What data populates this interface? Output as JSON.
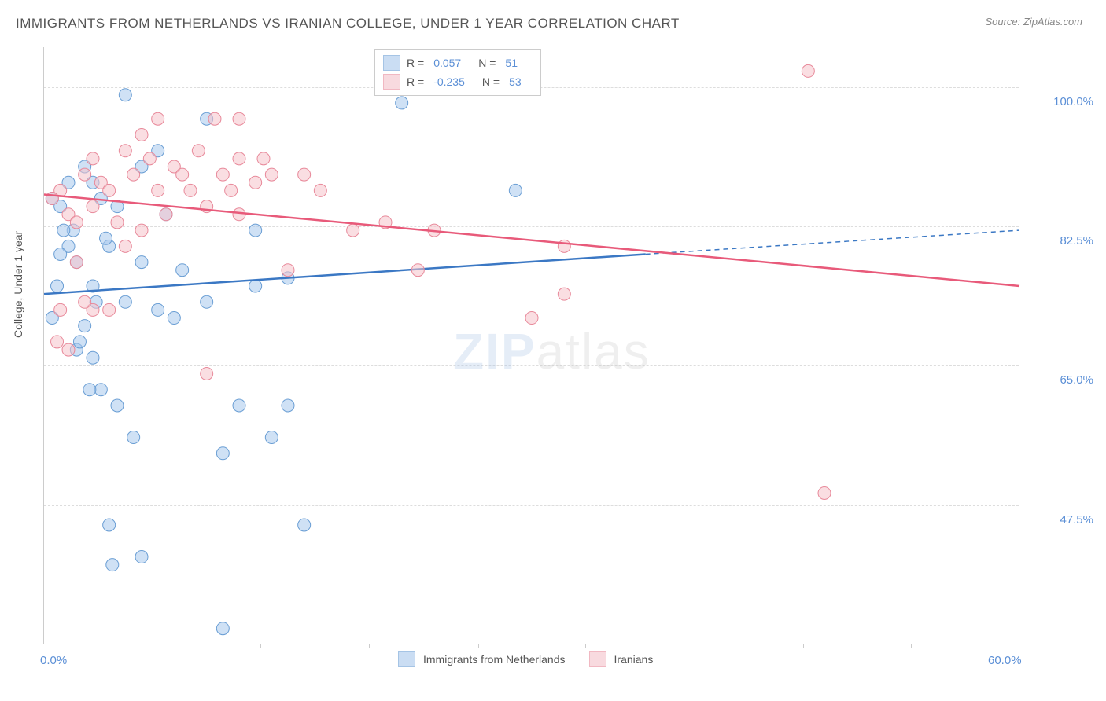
{
  "title": "IMMIGRANTS FROM NETHERLANDS VS IRANIAN COLLEGE, UNDER 1 YEAR CORRELATION CHART",
  "source": "Source: ZipAtlas.com",
  "ylabel": "College, Under 1 year",
  "watermark_bold": "ZIP",
  "watermark_light": "atlas",
  "chart": {
    "type": "scatter-with-regression",
    "xlim": [
      0,
      60
    ],
    "ylim": [
      30,
      105
    ],
    "x_ticks": [
      0,
      60
    ],
    "x_tick_labels": [
      "0.0%",
      "60.0%"
    ],
    "x_minor_ticks": [
      6.7,
      13.3,
      20,
      26.7,
      33.3,
      40,
      46.7,
      53.3
    ],
    "y_ticks": [
      47.5,
      65.0,
      82.5,
      100.0
    ],
    "y_tick_labels": [
      "47.5%",
      "65.0%",
      "82.5%",
      "100.0%"
    ],
    "grid_color": "#dddddd",
    "series": [
      {
        "name": "Immigrants from Netherlands",
        "color": "#a8c8ec",
        "stroke": "#6a9ed4",
        "line_color": "#3b78c4",
        "R": "0.057",
        "N": "51",
        "regression": {
          "x1": 0,
          "y1": 74,
          "x2": 37,
          "y2": 79,
          "x2_dash": 60,
          "y2_dash": 82
        },
        "points": [
          [
            1,
            85
          ],
          [
            1.5,
            80
          ],
          [
            1.8,
            82
          ],
          [
            2,
            78
          ],
          [
            2.5,
            90
          ],
          [
            2.5,
            70
          ],
          [
            3,
            88
          ],
          [
            3,
            75
          ],
          [
            3.5,
            86
          ],
          [
            4,
            80
          ],
          [
            4.5,
            85
          ],
          [
            5,
            99
          ],
          [
            5,
            73
          ],
          [
            6,
            90
          ],
          [
            6,
            78
          ],
          [
            7,
            92
          ],
          [
            7,
            72
          ],
          [
            7.5,
            84
          ],
          [
            8,
            71
          ],
          [
            8.5,
            77
          ],
          [
            3.5,
            62
          ],
          [
            4.5,
            60
          ],
          [
            5.5,
            56
          ],
          [
            6,
            41
          ],
          [
            4,
            45
          ],
          [
            10,
            73
          ],
          [
            11,
            54
          ],
          [
            12,
            60
          ],
          [
            13,
            75
          ],
          [
            14,
            56
          ],
          [
            15,
            76
          ],
          [
            15,
            60
          ],
          [
            16,
            45
          ],
          [
            11,
            32
          ],
          [
            10,
            96
          ],
          [
            13,
            82
          ],
          [
            29,
            87
          ],
          [
            22,
            98
          ],
          [
            2,
            67
          ],
          [
            3,
            66
          ],
          [
            1,
            79
          ],
          [
            0.5,
            71
          ],
          [
            0.8,
            75
          ],
          [
            1.2,
            82
          ],
          [
            1.5,
            88
          ],
          [
            2.2,
            68
          ],
          [
            2.8,
            62
          ],
          [
            3.2,
            73
          ],
          [
            3.8,
            81
          ],
          [
            4.2,
            40
          ],
          [
            0.5,
            86
          ]
        ]
      },
      {
        "name": "Iranians",
        "color": "#f5c2cb",
        "stroke": "#e8899a",
        "line_color": "#e85a7a",
        "R": "-0.235",
        "N": "53",
        "regression": {
          "x1": 0,
          "y1": 86.5,
          "x2": 60,
          "y2": 75
        },
        "points": [
          [
            1,
            87
          ],
          [
            1.5,
            84
          ],
          [
            2,
            83
          ],
          [
            2.5,
            89
          ],
          [
            3,
            91
          ],
          [
            3,
            85
          ],
          [
            3.5,
            88
          ],
          [
            4,
            87
          ],
          [
            4.5,
            83
          ],
          [
            5,
            92
          ],
          [
            5.5,
            89
          ],
          [
            6,
            94
          ],
          [
            6.5,
            91
          ],
          [
            7,
            87
          ],
          [
            7.5,
            84
          ],
          [
            8,
            90
          ],
          [
            8.5,
            89
          ],
          [
            9,
            87
          ],
          [
            9.5,
            92
          ],
          [
            10,
            85
          ],
          [
            10.5,
            96
          ],
          [
            11,
            89
          ],
          [
            11.5,
            87
          ],
          [
            12,
            84
          ],
          [
            13,
            88
          ],
          [
            13.5,
            91
          ],
          [
            14,
            89
          ],
          [
            15,
            77
          ],
          [
            16,
            89
          ],
          [
            17,
            87
          ],
          [
            19,
            82
          ],
          [
            21,
            83
          ],
          [
            23,
            77
          ],
          [
            24,
            82
          ],
          [
            30,
            71
          ],
          [
            32,
            74
          ],
          [
            32,
            80
          ],
          [
            47,
            102
          ],
          [
            48,
            49
          ],
          [
            3,
            72
          ],
          [
            4,
            72
          ],
          [
            5,
            80
          ],
          [
            2,
            78
          ],
          [
            1.5,
            67
          ],
          [
            0.5,
            86
          ],
          [
            0.8,
            68
          ],
          [
            10,
            64
          ],
          [
            12,
            91
          ],
          [
            7,
            96
          ],
          [
            6,
            82
          ],
          [
            2.5,
            73
          ],
          [
            1,
            72
          ],
          [
            12,
            96
          ]
        ]
      }
    ]
  },
  "legend_bottom": {
    "series1": "Immigrants from Netherlands",
    "series2": "Iranians"
  }
}
